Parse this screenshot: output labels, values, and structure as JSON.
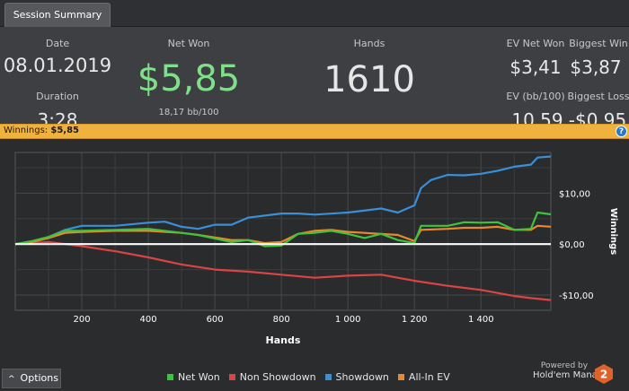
{
  "tab": {
    "label": "Session Summary"
  },
  "summary": {
    "date_label": "Date",
    "date_value": "08.01.2019",
    "duration_label": "Duration",
    "duration_value": "3:28",
    "net_won_label": "Net Won",
    "net_won_value": "$5,85",
    "net_won_sub": "18,17 bb/100",
    "hands_label": "Hands",
    "hands_value": "1610",
    "ev_net_won_label": "EV Net Won",
    "ev_net_won_value": "$3,41",
    "biggest_win_label": "Biggest Win",
    "biggest_win_value": "$3,87",
    "ev_bb_label": "EV (bb/100)",
    "ev_bb_value": "10,59",
    "biggest_loss_label": "Biggest Loss",
    "biggest_loss_value": "-$0,95"
  },
  "winnings_bar": {
    "label": "Winnings:",
    "value": "$5,85",
    "help_glyph": "?"
  },
  "chart_data": {
    "type": "line",
    "xlabel": "Hands",
    "ylabel": "Winnings",
    "xlim": [
      0,
      1610
    ],
    "ylim": [
      -13,
      18
    ],
    "x_ticks": [
      200,
      400,
      600,
      800,
      1000,
      1200,
      1400
    ],
    "x_tick_labels": [
      "200",
      "400",
      "600",
      "800",
      "1 000",
      "1 200",
      "1 400"
    ],
    "y_ticks": [
      10,
      0,
      -10
    ],
    "y_tick_labels": [
      "$10,00",
      "$0,00",
      "-$10,00"
    ],
    "grid": true,
    "zero_line": true,
    "legend_position": "bottom",
    "series": [
      {
        "name": "Net Won",
        "color": "#3ec43c",
        "points": [
          [
            0,
            0
          ],
          [
            50,
            0.6
          ],
          [
            100,
            1.4
          ],
          [
            150,
            2.6
          ],
          [
            200,
            2.6
          ],
          [
            300,
            2.8
          ],
          [
            400,
            3.0
          ],
          [
            500,
            2.2
          ],
          [
            550,
            1.8
          ],
          [
            650,
            0.4
          ],
          [
            700,
            0.8
          ],
          [
            750,
            -0.4
          ],
          [
            800,
            -0.3
          ],
          [
            850,
            2.0
          ],
          [
            900,
            2.2
          ],
          [
            950,
            2.6
          ],
          [
            1000,
            2.0
          ],
          [
            1050,
            1.2
          ],
          [
            1100,
            2.0
          ],
          [
            1150,
            0.8
          ],
          [
            1200,
            0.2
          ],
          [
            1220,
            3.6
          ],
          [
            1300,
            3.6
          ],
          [
            1350,
            4.3
          ],
          [
            1400,
            4.2
          ],
          [
            1450,
            4.3
          ],
          [
            1500,
            2.8
          ],
          [
            1550,
            3.0
          ],
          [
            1570,
            6.2
          ],
          [
            1610,
            5.85
          ]
        ]
      },
      {
        "name": "Non Showdown",
        "color": "#d94444",
        "points": [
          [
            0,
            0
          ],
          [
            100,
            0.4
          ],
          [
            200,
            -0.4
          ],
          [
            300,
            -1.4
          ],
          [
            400,
            -2.6
          ],
          [
            500,
            -4.0
          ],
          [
            600,
            -5.0
          ],
          [
            700,
            -5.4
          ],
          [
            800,
            -6.0
          ],
          [
            900,
            -6.6
          ],
          [
            1000,
            -6.2
          ],
          [
            1100,
            -6.0
          ],
          [
            1200,
            -7.2
          ],
          [
            1300,
            -8.2
          ],
          [
            1400,
            -9.0
          ],
          [
            1500,
            -10.2
          ],
          [
            1550,
            -10.6
          ],
          [
            1610,
            -11.0
          ]
        ]
      },
      {
        "name": "Showdown",
        "color": "#3a8fd8",
        "points": [
          [
            0,
            0
          ],
          [
            50,
            0.4
          ],
          [
            100,
            1.4
          ],
          [
            150,
            2.8
          ],
          [
            200,
            3.6
          ],
          [
            300,
            3.6
          ],
          [
            400,
            4.2
          ],
          [
            450,
            4.4
          ],
          [
            500,
            3.4
          ],
          [
            550,
            3.0
          ],
          [
            600,
            3.8
          ],
          [
            650,
            3.8
          ],
          [
            700,
            5.2
          ],
          [
            800,
            6.0
          ],
          [
            850,
            6.0
          ],
          [
            900,
            5.8
          ],
          [
            1000,
            6.2
          ],
          [
            1100,
            7.0
          ],
          [
            1150,
            6.2
          ],
          [
            1200,
            7.6
          ],
          [
            1220,
            11.0
          ],
          [
            1250,
            12.6
          ],
          [
            1300,
            13.6
          ],
          [
            1350,
            13.5
          ],
          [
            1400,
            13.8
          ],
          [
            1450,
            14.4
          ],
          [
            1500,
            15.2
          ],
          [
            1550,
            15.6
          ],
          [
            1570,
            17.0
          ],
          [
            1610,
            17.2
          ]
        ]
      },
      {
        "name": "All-In EV",
        "color": "#e8892e",
        "points": [
          [
            0,
            0
          ],
          [
            50,
            0.4
          ],
          [
            100,
            1.2
          ],
          [
            150,
            2.2
          ],
          [
            200,
            2.4
          ],
          [
            300,
            2.6
          ],
          [
            400,
            2.6
          ],
          [
            500,
            2.2
          ],
          [
            550,
            1.8
          ],
          [
            650,
            0.8
          ],
          [
            700,
            0.8
          ],
          [
            750,
            0.2
          ],
          [
            800,
            0.4
          ],
          [
            850,
            2.0
          ],
          [
            900,
            2.6
          ],
          [
            950,
            2.8
          ],
          [
            1000,
            2.4
          ],
          [
            1050,
            2.2
          ],
          [
            1100,
            2.0
          ],
          [
            1150,
            1.8
          ],
          [
            1200,
            0.6
          ],
          [
            1220,
            2.8
          ],
          [
            1300,
            3.0
          ],
          [
            1350,
            3.2
          ],
          [
            1400,
            3.2
          ],
          [
            1450,
            3.4
          ],
          [
            1500,
            2.8
          ],
          [
            1550,
            2.8
          ],
          [
            1570,
            3.6
          ],
          [
            1610,
            3.41
          ]
        ]
      }
    ]
  },
  "bottom": {
    "options_label": "Options",
    "options_glyph": "^",
    "powered_by": "Powered by",
    "brand": "Hold'em Manager",
    "logo_glyph": "2"
  }
}
